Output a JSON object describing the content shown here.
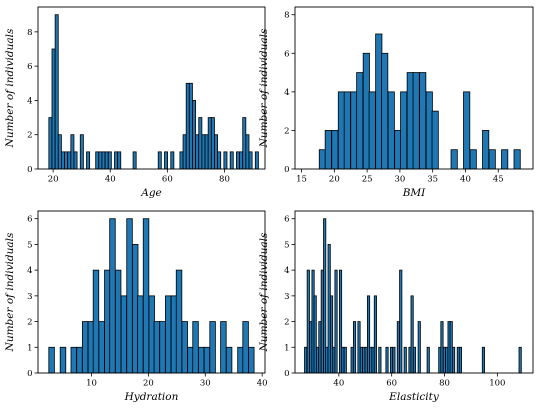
{
  "chart_data": [
    {
      "type": "bar",
      "xlabel": "Age",
      "ylabel": "Number of individuals",
      "xlim": [
        14.7,
        94.2
      ],
      "ylim": [
        0,
        9.45
      ],
      "xticks": [
        20,
        40,
        60,
        80
      ],
      "yticks": [
        0,
        2,
        4,
        6,
        8
      ],
      "bin_width": 1.09,
      "bins": [
        [
          18.5,
          3
        ],
        [
          19.6,
          7
        ],
        [
          20.7,
          9
        ],
        [
          21.8,
          2
        ],
        [
          22.9,
          1
        ],
        [
          24.0,
          1
        ],
        [
          25.1,
          1
        ],
        [
          26.2,
          2
        ],
        [
          27.3,
          1
        ],
        [
          29.5,
          2
        ],
        [
          31.7,
          1
        ],
        [
          34.9,
          1
        ],
        [
          36.0,
          1
        ],
        [
          37.1,
          1
        ],
        [
          38.2,
          1
        ],
        [
          39.3,
          1
        ],
        [
          41.5,
          1
        ],
        [
          42.6,
          1
        ],
        [
          48.0,
          1
        ],
        [
          56.8,
          1
        ],
        [
          59.0,
          1
        ],
        [
          61.2,
          1
        ],
        [
          64.4,
          1
        ],
        [
          65.5,
          2
        ],
        [
          66.6,
          5
        ],
        [
          67.7,
          5
        ],
        [
          68.8,
          4
        ],
        [
          69.9,
          2
        ],
        [
          71.0,
          3
        ],
        [
          72.1,
          2
        ],
        [
          73.2,
          2
        ],
        [
          74.3,
          3
        ],
        [
          75.4,
          3
        ],
        [
          76.5,
          2
        ],
        [
          77.6,
          1
        ],
        [
          79.8,
          1
        ],
        [
          82.0,
          1
        ],
        [
          84.2,
          1
        ],
        [
          85.3,
          1
        ],
        [
          86.4,
          3
        ],
        [
          87.5,
          2
        ],
        [
          88.6,
          1
        ],
        [
          90.8,
          1
        ]
      ]
    },
    {
      "type": "bar",
      "xlabel": "BMI",
      "ylabel": "Number of individuals",
      "xlim": [
        14.0,
        50.3
      ],
      "ylim": [
        0,
        8.4
      ],
      "xticks": [
        15,
        20,
        25,
        30,
        35,
        40,
        45
      ],
      "yticks": [
        0,
        2,
        4,
        6,
        8
      ],
      "bin_width": 0.96,
      "bins": [
        [
          17.7,
          1
        ],
        [
          18.6,
          2
        ],
        [
          19.6,
          2
        ],
        [
          20.6,
          4
        ],
        [
          21.5,
          4
        ],
        [
          22.5,
          4
        ],
        [
          23.4,
          5
        ],
        [
          24.4,
          6
        ],
        [
          25.3,
          4
        ],
        [
          26.3,
          7
        ],
        [
          27.2,
          6
        ],
        [
          28.2,
          4
        ],
        [
          29.2,
          2
        ],
        [
          30.1,
          4
        ],
        [
          31.1,
          5
        ],
        [
          32.0,
          5
        ],
        [
          33.0,
          5
        ],
        [
          34.0,
          4
        ],
        [
          34.9,
          3
        ],
        [
          37.8,
          1
        ],
        [
          39.7,
          4
        ],
        [
          40.7,
          1
        ],
        [
          42.6,
          2
        ],
        [
          43.6,
          1
        ],
        [
          45.5,
          1
        ],
        [
          47.4,
          1
        ]
      ]
    },
    {
      "type": "bar",
      "xlabel": "Hydration",
      "ylabel": "Number of individuals",
      "xlim": [
        0.6,
        40.5
      ],
      "ylim": [
        0,
        6.3
      ],
      "xticks": [
        10,
        20,
        30,
        40
      ],
      "yticks": [
        0,
        1,
        2,
        3,
        4,
        5,
        6
      ],
      "bin_width": 0.98,
      "bins": [
        [
          2.5,
          1
        ],
        [
          4.5,
          1
        ],
        [
          6.4,
          1
        ],
        [
          7.4,
          1
        ],
        [
          8.4,
          2
        ],
        [
          9.4,
          2
        ],
        [
          10.3,
          4
        ],
        [
          11.3,
          2
        ],
        [
          12.3,
          4
        ],
        [
          13.2,
          6
        ],
        [
          14.2,
          4
        ],
        [
          15.2,
          3
        ],
        [
          16.2,
          6
        ],
        [
          17.2,
          5
        ],
        [
          18.1,
          3
        ],
        [
          19.1,
          6
        ],
        [
          20.1,
          3
        ],
        [
          21.0,
          2
        ],
        [
          22.0,
          2
        ],
        [
          23.0,
          3
        ],
        [
          24.0,
          3
        ],
        [
          24.9,
          4
        ],
        [
          25.9,
          2
        ],
        [
          26.9,
          1
        ],
        [
          27.8,
          2
        ],
        [
          28.8,
          1
        ],
        [
          29.8,
          1
        ],
        [
          30.8,
          2
        ],
        [
          32.7,
          2
        ],
        [
          33.7,
          1
        ],
        [
          35.7,
          1
        ],
        [
          36.6,
          2
        ],
        [
          37.6,
          1
        ]
      ]
    },
    {
      "type": "bar",
      "xlabel": "Elasticity",
      "ylabel": "Number of individuals",
      "xlim": [
        23.4,
        113.5
      ],
      "ylim": [
        0,
        6.3
      ],
      "xticks": [
        40,
        60,
        80,
        100
      ],
      "yticks": [
        0,
        1,
        2,
        3,
        4,
        5,
        6
      ],
      "bin_width": 0.87,
      "bins": [
        [
          27.0,
          1
        ],
        [
          28.0,
          4
        ],
        [
          28.9,
          2
        ],
        [
          29.8,
          4
        ],
        [
          30.6,
          3
        ],
        [
          31.5,
          1
        ],
        [
          32.4,
          2
        ],
        [
          33.3,
          4
        ],
        [
          34.2,
          6
        ],
        [
          35.0,
          1
        ],
        [
          35.9,
          5
        ],
        [
          36.8,
          3
        ],
        [
          37.7,
          1
        ],
        [
          38.5,
          4
        ],
        [
          40.2,
          4
        ],
        [
          41.1,
          1
        ],
        [
          42.0,
          1
        ],
        [
          44.6,
          1
        ],
        [
          45.5,
          2
        ],
        [
          47.2,
          2
        ],
        [
          48.1,
          1
        ],
        [
          49.0,
          1
        ],
        [
          49.9,
          1
        ],
        [
          50.8,
          3
        ],
        [
          51.6,
          1
        ],
        [
          52.5,
          1
        ],
        [
          53.4,
          3
        ],
        [
          55.1,
          1
        ],
        [
          57.8,
          1
        ],
        [
          59.5,
          1
        ],
        [
          60.4,
          1
        ],
        [
          62.1,
          2
        ],
        [
          63.0,
          4
        ],
        [
          64.7,
          1
        ],
        [
          66.5,
          1
        ],
        [
          67.3,
          3
        ],
        [
          68.2,
          1
        ],
        [
          70.0,
          2
        ],
        [
          73.4,
          1
        ],
        [
          77.8,
          1
        ],
        [
          78.6,
          2
        ],
        [
          79.5,
          1
        ],
        [
          80.4,
          1
        ],
        [
          81.3,
          2
        ],
        [
          82.1,
          2
        ],
        [
          83.0,
          1
        ],
        [
          84.8,
          1
        ],
        [
          85.6,
          1
        ],
        [
          94.3,
          1
        ],
        [
          108.2,
          1
        ]
      ]
    }
  ]
}
